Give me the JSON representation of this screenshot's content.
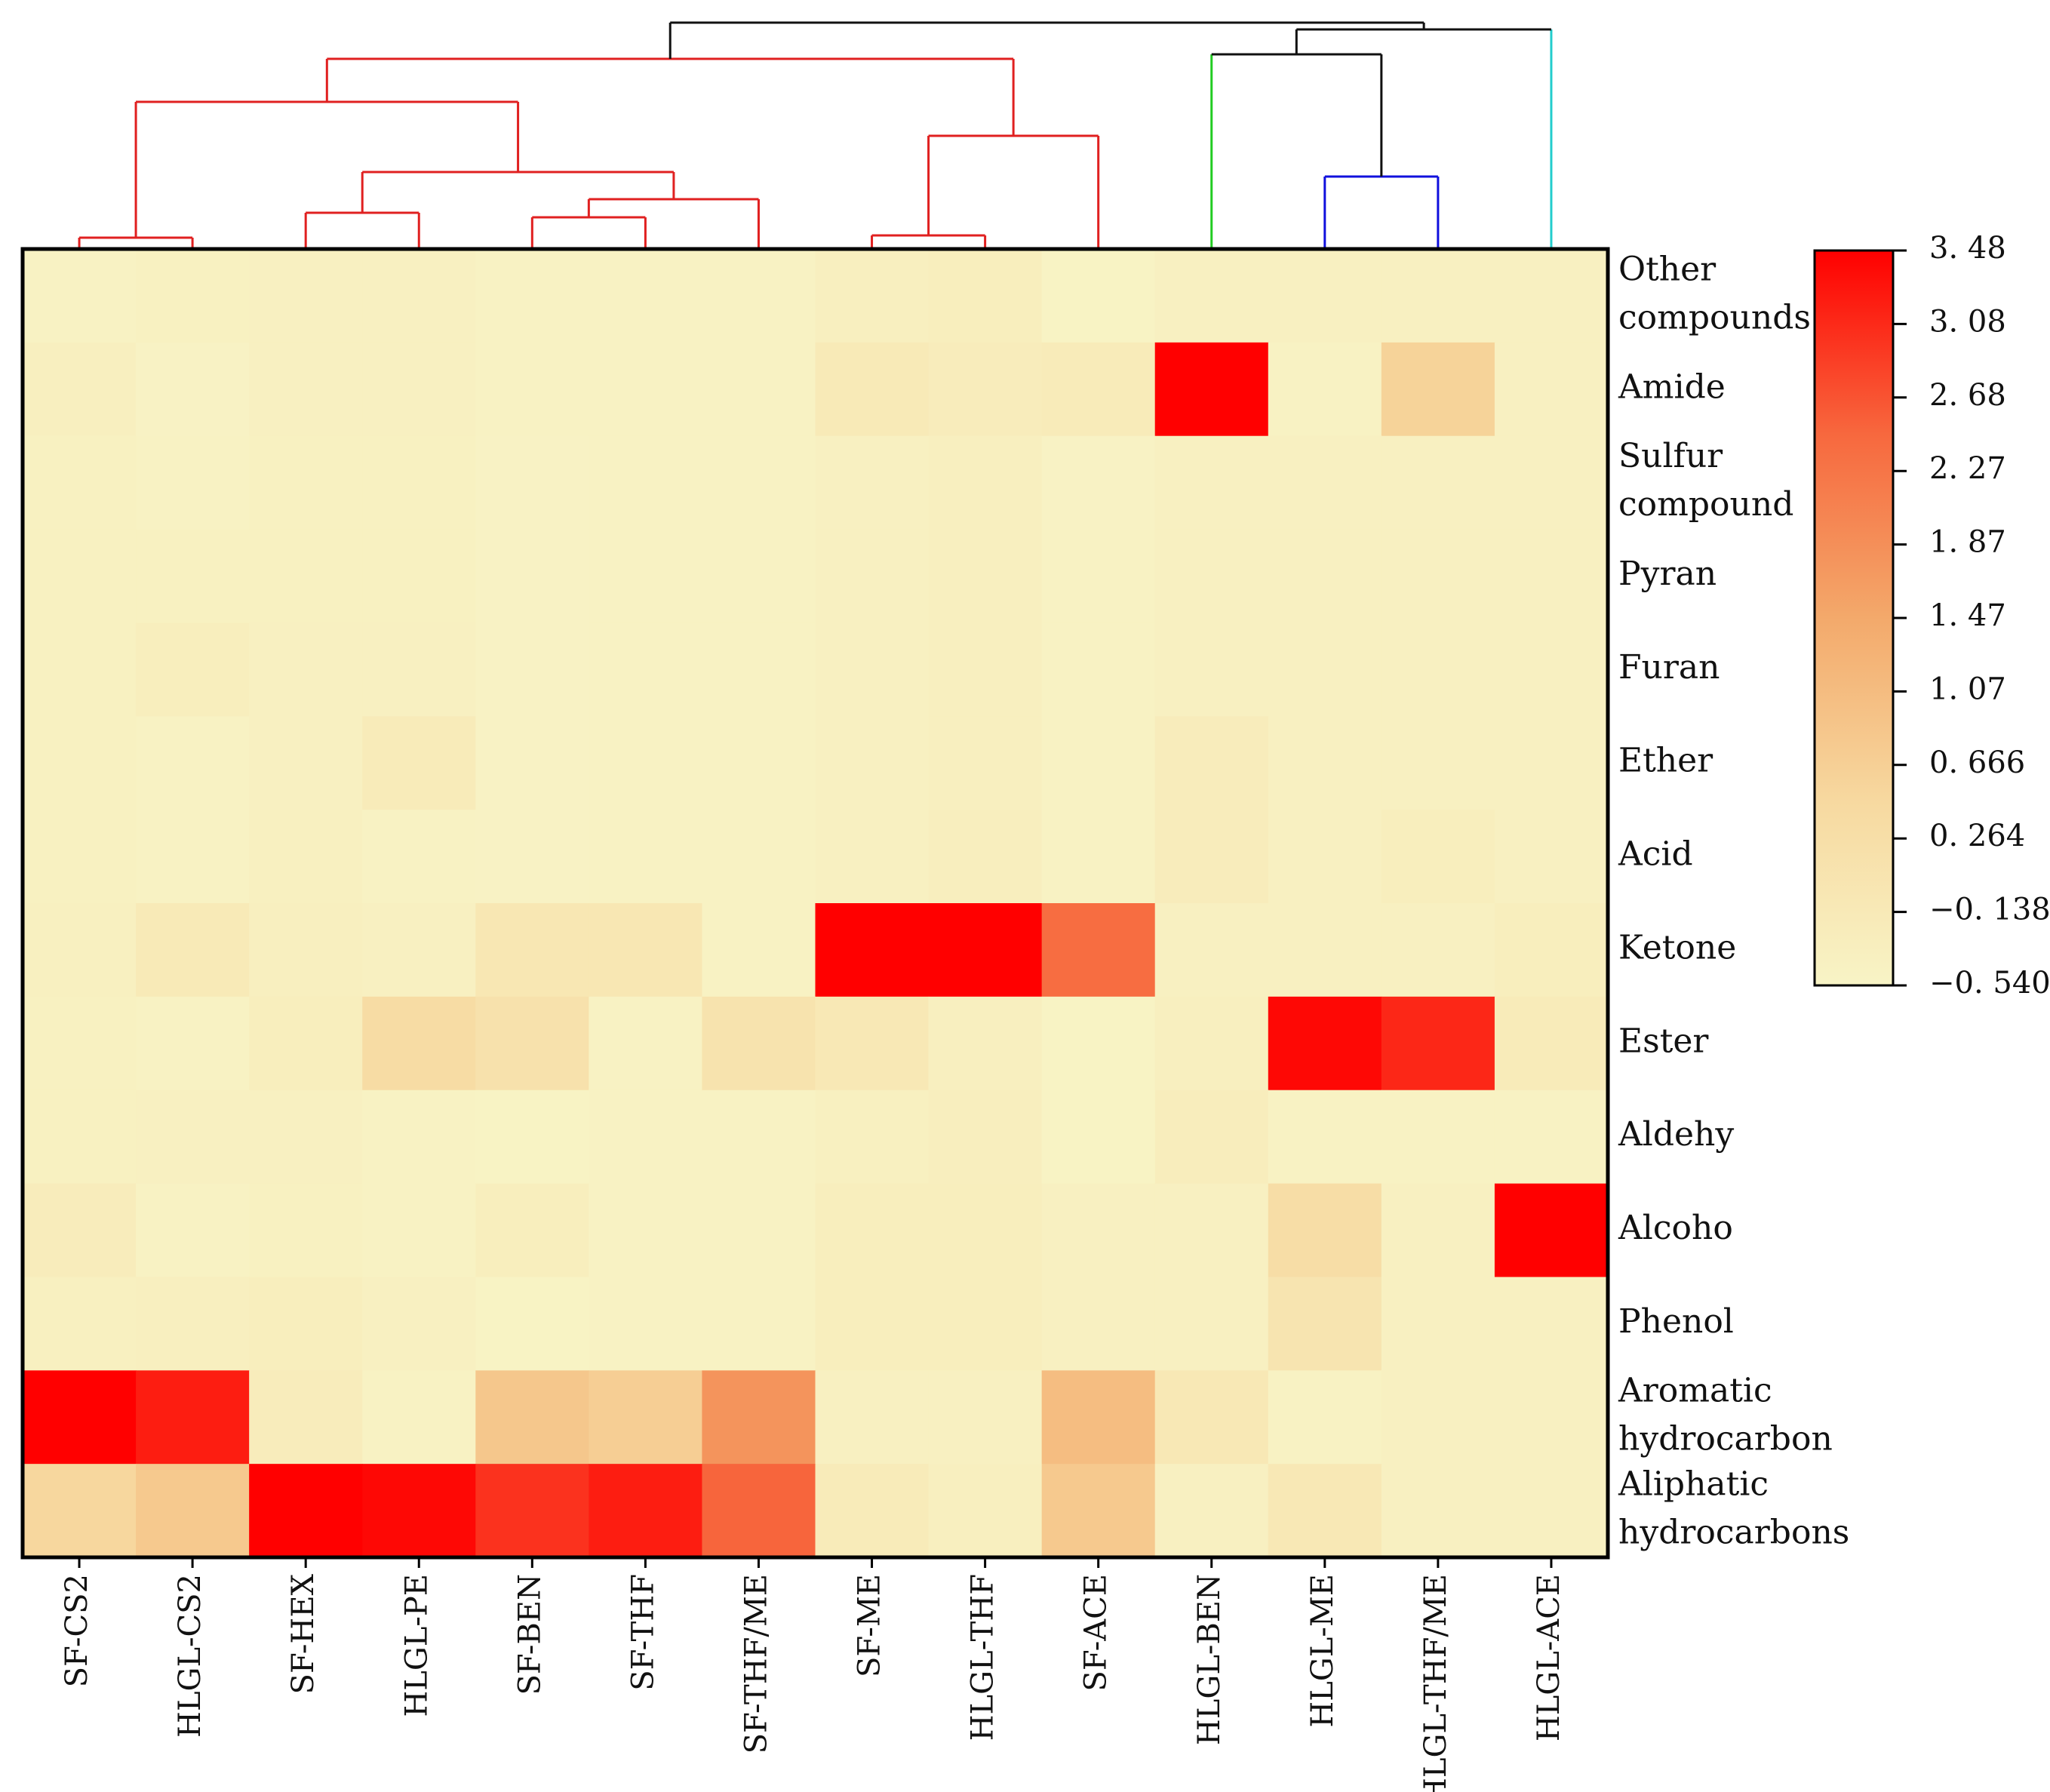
{
  "chart_data": {
    "type": "heatmap",
    "title": "",
    "columns": [
      "SF-CS2",
      "HLGL-CS2",
      "SF-HEX",
      "HLGL-PE",
      "SF-BEN",
      "SF-THF",
      "SF-THF/ME",
      "SF-ME",
      "HLGL-THF",
      "SF-ACE",
      "HLGL-BEN",
      "HLGL-ME",
      "HLGL-THF/ME",
      "HLGL-ACE"
    ],
    "rows": [
      [
        "Other",
        "compounds"
      ],
      [
        "Amide"
      ],
      [
        "Sulfur",
        "compound"
      ],
      [
        "Pyran"
      ],
      [
        "Furan"
      ],
      [
        "Ether"
      ],
      [
        "Acid"
      ],
      [
        "Ketone"
      ],
      [
        "Ester"
      ],
      [
        "Aldehy"
      ],
      [
        "Alcoho"
      ],
      [
        "Phenol"
      ],
      [
        "Aromatic",
        "hydrocarbon"
      ],
      [
        "Aliphatic",
        "hydrocarbons"
      ]
    ],
    "values": [
      [
        -0.45,
        -0.42,
        -0.4,
        -0.4,
        -0.45,
        -0.45,
        -0.45,
        -0.35,
        -0.3,
        -0.5,
        -0.4,
        -0.4,
        -0.4,
        -0.4
      ],
      [
        -0.35,
        -0.48,
        -0.4,
        -0.4,
        -0.45,
        -0.45,
        -0.45,
        -0.15,
        -0.25,
        -0.2,
        3.48,
        -0.45,
        0.6,
        -0.4
      ],
      [
        -0.42,
        -0.45,
        -0.42,
        -0.42,
        -0.48,
        -0.45,
        -0.45,
        -0.4,
        -0.35,
        -0.48,
        -0.4,
        -0.4,
        -0.4,
        -0.4
      ],
      [
        -0.42,
        -0.42,
        -0.42,
        -0.42,
        -0.48,
        -0.45,
        -0.45,
        -0.4,
        -0.35,
        -0.45,
        -0.4,
        -0.4,
        -0.4,
        -0.4
      ],
      [
        -0.42,
        -0.3,
        -0.4,
        -0.4,
        -0.48,
        -0.45,
        -0.45,
        -0.4,
        -0.35,
        -0.45,
        -0.4,
        -0.4,
        -0.4,
        -0.4
      ],
      [
        -0.42,
        -0.45,
        -0.4,
        -0.2,
        -0.48,
        -0.45,
        -0.45,
        -0.4,
        -0.35,
        -0.45,
        -0.25,
        -0.4,
        -0.4,
        -0.4
      ],
      [
        -0.42,
        -0.45,
        -0.38,
        -0.45,
        -0.48,
        -0.45,
        -0.45,
        -0.4,
        -0.32,
        -0.45,
        -0.25,
        -0.4,
        -0.3,
        -0.4
      ],
      [
        -0.38,
        -0.15,
        -0.35,
        -0.4,
        -0.05,
        -0.05,
        -0.45,
        3.48,
        3.48,
        2.4,
        -0.4,
        -0.4,
        -0.4,
        -0.3
      ],
      [
        -0.42,
        -0.45,
        -0.3,
        0.35,
        0.15,
        -0.45,
        0.1,
        -0.1,
        -0.35,
        -0.5,
        -0.35,
        3.4,
        3.1,
        -0.2
      ],
      [
        -0.42,
        -0.4,
        -0.4,
        -0.45,
        -0.5,
        -0.45,
        -0.45,
        -0.38,
        -0.32,
        -0.5,
        -0.28,
        -0.45,
        -0.45,
        -0.45
      ],
      [
        -0.25,
        -0.45,
        -0.42,
        -0.45,
        -0.3,
        -0.45,
        -0.45,
        -0.3,
        -0.3,
        -0.4,
        -0.4,
        0.3,
        -0.4,
        3.48
      ],
      [
        -0.38,
        -0.35,
        -0.3,
        -0.4,
        -0.5,
        -0.45,
        -0.45,
        -0.3,
        -0.3,
        -0.4,
        -0.4,
        0.05,
        -0.4,
        -0.4
      ],
      [
        3.48,
        3.2,
        -0.25,
        -0.45,
        0.85,
        0.7,
        1.8,
        -0.4,
        -0.4,
        1.05,
        -0.1,
        -0.45,
        -0.4,
        -0.4
      ],
      [
        0.5,
        0.8,
        3.48,
        3.4,
        3.0,
        3.2,
        2.5,
        -0.2,
        -0.35,
        0.8,
        -0.4,
        -0.1,
        -0.4,
        -0.4
      ]
    ],
    "colorbar": {
      "min": -0.54,
      "max": 3.48,
      "ticks": [
        "3. 48",
        "3. 08",
        "2. 68",
        "2. 27",
        "1. 87",
        "1. 47",
        "1. 07",
        "0. 666",
        "0. 264",
        "−0. 138",
        "−0. 540"
      ],
      "colors": [
        "#f8f4c6",
        "#f7d9a0",
        "#f3a96b",
        "#f7683e",
        "#ff0000"
      ]
    },
    "dendrogram": {
      "order": [
        "SF-CS2",
        "HLGL-CS2",
        "SF-HEX",
        "HLGL-PE",
        "SF-BEN",
        "SF-THF",
        "SF-THF/ME",
        "SF-ME",
        "HLGL-THF",
        "SF-ACE",
        "HLGL-BEN",
        "HLGL-ME",
        "HLGL-THF/ME",
        "HLGL-ACE"
      ],
      "merges": [
        {
          "a": 0,
          "b": 1,
          "height": 0.05,
          "color": "#e02020"
        },
        {
          "a": 2,
          "b": 3,
          "height": 0.16,
          "color": "#e02020"
        },
        {
          "a": 4,
          "b": 5,
          "height": 0.14,
          "color": "#e02020"
        },
        {
          "a": 16,
          "b": 6,
          "height": 0.22,
          "color": "#e02020"
        },
        {
          "a": 15,
          "b": 17,
          "height": 0.34,
          "color": "#e02020"
        },
        {
          "a": 14,
          "b": 18,
          "height": 0.65,
          "color": "#e02020"
        },
        {
          "a": 7,
          "b": 8,
          "height": 0.06,
          "color": "#e02020"
        },
        {
          "a": 20,
          "b": 9,
          "height": 0.5,
          "color": "#e02020"
        },
        {
          "a": 19,
          "b": 21,
          "height": 0.84,
          "color": "#e02020"
        },
        {
          "a": 11,
          "b": 12,
          "height": 0.32,
          "color": "#1010dd"
        },
        {
          "a": 10,
          "b": 23,
          "height": 0.86,
          "colorA": "#22cc22",
          "colorB": "#111111",
          "color": "#111111"
        },
        {
          "a": 24,
          "b": 13,
          "height": 0.97,
          "colorA": "#111111",
          "colorB": "#22cccc",
          "color": "#111111"
        },
        {
          "a": 22,
          "b": 25,
          "height": 1.0,
          "color": "#111111"
        }
      ]
    }
  }
}
